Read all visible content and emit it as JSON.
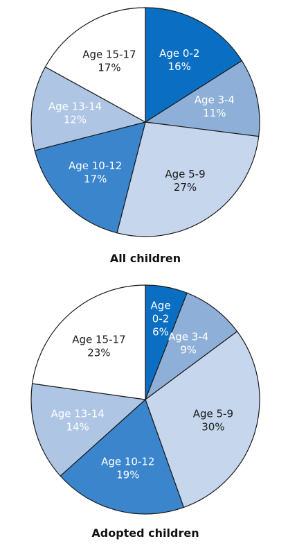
{
  "chart_data": [
    {
      "type": "pie",
      "title": "All children",
      "slices": [
        {
          "label": "Age 0-2",
          "value": 16,
          "display": "16%",
          "color": "#0a6fc2",
          "text_color": "#ffffff"
        },
        {
          "label": "Age 3-4",
          "value": 11,
          "display": "11%",
          "color": "#8eb0d8",
          "text_color": "#ffffff"
        },
        {
          "label": "Age 5-9",
          "value": 27,
          "display": "27%",
          "color": "#c6d6ec",
          "text_color": "#1a1a1a"
        },
        {
          "label": "Age 10-12",
          "value": 17,
          "display": "17%",
          "color": "#3a85cc",
          "text_color": "#ffffff"
        },
        {
          "label": "Age 13-14",
          "value": 12,
          "display": "12%",
          "color": "#aec6e4",
          "text_color": "#ffffff"
        },
        {
          "label": "Age 15-17",
          "value": 17,
          "display": "17%",
          "color": "#ffffff",
          "text_color": "#1a1a1a"
        }
      ]
    },
    {
      "type": "pie",
      "title": "Adopted children",
      "slices": [
        {
          "label": "Age 0-2",
          "value": 6,
          "display": "6%",
          "color": "#0a6fc2",
          "text_color": "#ffffff",
          "stacked": true
        },
        {
          "label": "Age 3-4",
          "value": 9,
          "display": "9%",
          "color": "#8eb0d8",
          "text_color": "#ffffff"
        },
        {
          "label": "Age 5-9",
          "value": 30,
          "display": "30%",
          "color": "#c6d6ec",
          "text_color": "#1a1a1a"
        },
        {
          "label": "Age 10-12",
          "value": 19,
          "display": "19%",
          "color": "#3a85cc",
          "text_color": "#ffffff"
        },
        {
          "label": "Age 13-14",
          "value": 14,
          "display": "14%",
          "color": "#aec6e4",
          "text_color": "#ffffff"
        },
        {
          "label": "Age 15-17",
          "value": 23,
          "display": "23%",
          "color": "#ffffff",
          "text_color": "#1a1a1a"
        }
      ]
    }
  ]
}
